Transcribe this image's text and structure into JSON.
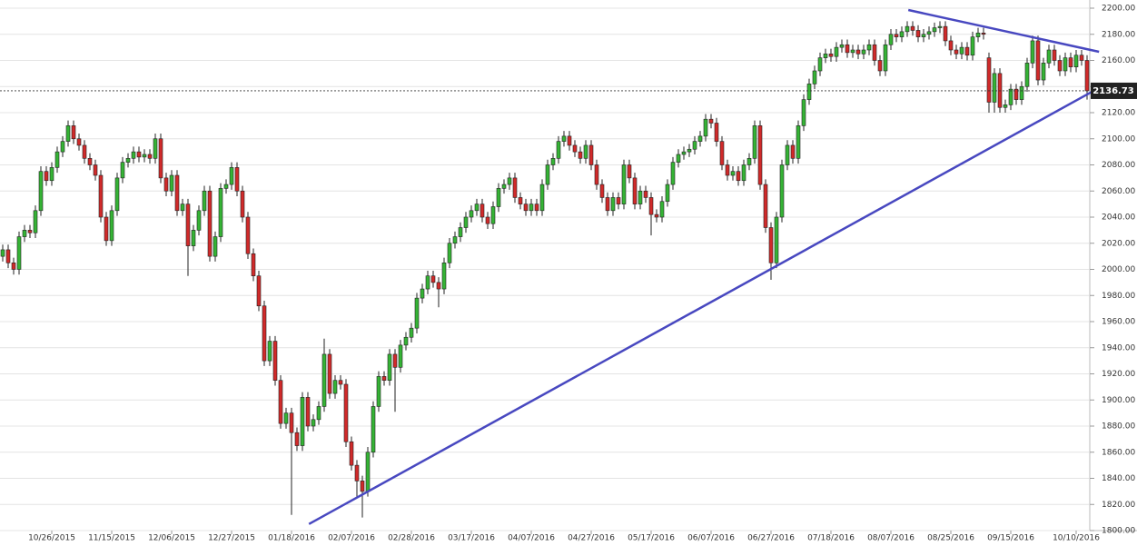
{
  "chart_data": {
    "type": "candlestick",
    "categories": [
      null,
      null,
      null,
      null,
      null,
      null,
      null,
      null,
      null,
      "10/26/2015",
      null,
      null,
      null,
      null,
      null,
      null,
      null,
      null,
      null,
      null,
      "11/15/2015",
      null,
      null,
      null,
      null,
      null,
      null,
      null,
      null,
      null,
      null,
      "12/06/2015",
      null,
      null,
      null,
      null,
      null,
      null,
      null,
      null,
      null,
      null,
      "12/27/2015",
      null,
      null,
      null,
      null,
      null,
      null,
      null,
      null,
      null,
      null,
      "01/18/2016",
      null,
      null,
      null,
      null,
      null,
      null,
      null,
      null,
      null,
      null,
      "02/07/2016",
      null,
      null,
      null,
      null,
      null,
      null,
      null,
      null,
      null,
      null,
      "02/28/2016",
      null,
      null,
      null,
      null,
      null,
      null,
      null,
      null,
      null,
      null,
      "03/17/2016",
      null,
      null,
      null,
      null,
      null,
      null,
      null,
      null,
      null,
      null,
      "04/07/2016",
      null,
      null,
      null,
      null,
      null,
      null,
      null,
      null,
      null,
      null,
      "04/27/2016",
      null,
      null,
      null,
      null,
      null,
      null,
      null,
      null,
      null,
      null,
      "05/17/2016",
      null,
      null,
      null,
      null,
      null,
      null,
      null,
      null,
      null,
      null,
      "06/07/2016",
      null,
      null,
      null,
      null,
      null,
      null,
      null,
      null,
      null,
      null,
      "06/27/2016",
      null,
      null,
      null,
      null,
      null,
      null,
      null,
      null,
      null,
      null,
      "07/18/2016",
      null,
      null,
      null,
      null,
      null,
      null,
      null,
      null,
      null,
      null,
      "08/07/2016",
      null,
      null,
      null,
      null,
      null,
      null,
      null,
      null,
      null,
      null,
      "08/25/2016",
      null,
      null,
      null,
      null,
      null,
      null,
      null,
      null,
      null,
      null,
      "09/15/2016",
      null,
      null,
      null,
      null,
      null,
      null,
      null,
      null,
      null,
      null,
      null,
      "10/10/2016",
      null,
      null
    ],
    "ohlc": {
      "open": [
        2010,
        2015,
        2005,
        2000,
        2025,
        2030,
        2028,
        2045,
        2075,
        2068,
        2078,
        2090,
        2098,
        2110,
        2100,
        2095,
        2085,
        2080,
        2072,
        2040,
        2022,
        2045,
        2070,
        2082,
        2085,
        2090,
        2086,
        2088,
        2085,
        2100,
        2070,
        2060,
        2072,
        2045,
        2050,
        2018,
        2030,
        2045,
        2060,
        2010,
        2025,
        2062,
        2065,
        2078,
        2060,
        2040,
        2012,
        1995,
        1972,
        1930,
        1945,
        1915,
        1882,
        1890,
        1875,
        1865,
        1902,
        1880,
        1885,
        1895,
        1935,
        1905,
        1915,
        1912,
        1868,
        1850,
        1838,
        1830,
        1860,
        1895,
        1918,
        1915,
        1935,
        1925,
        1942,
        1948,
        1955,
        1978,
        1985,
        1995,
        1990,
        1985,
        2005,
        2020,
        2025,
        2032,
        2040,
        2045,
        2050,
        2040,
        2035,
        2048,
        2062,
        2065,
        2070,
        2055,
        2050,
        2045,
        2050,
        2045,
        2065,
        2080,
        2085,
        2098,
        2102,
        2095,
        2090,
        2085,
        2095,
        2080,
        2065,
        2055,
        2045,
        2055,
        2050,
        2080,
        2070,
        2050,
        2060,
        2055,
        2042,
        2040,
        2052,
        2065,
        2082,
        2088,
        2090,
        2092,
        2098,
        2102,
        2115,
        2112,
        2098,
        2080,
        2072,
        2075,
        2068,
        2080,
        2085,
        2110,
        2065,
        2032,
        2005,
        2040,
        2080,
        2095,
        2085,
        2110,
        2130,
        2142,
        2152,
        2162,
        2165,
        2163,
        2170,
        2172,
        2166,
        2168,
        2165,
        2168,
        2172,
        2160,
        2152,
        2172,
        2180,
        2178,
        2182,
        2186,
        2183,
        2178,
        2180,
        2182,
        2185,
        2186,
        2175,
        2168,
        2165,
        2170,
        2164,
        2178,
        2181,
        2162,
        2128,
        2150,
        2124,
        2126,
        2138,
        2130,
        2140,
        2158,
        2175,
        2145,
        2158,
        2168,
        2160,
        2152,
        2162,
        2155,
        2164,
        2160
      ],
      "high": [
        2019,
        2019,
        2009,
        2029,
        2034,
        2034,
        2049,
        2079,
        2079,
        2082,
        2094,
        2102,
        2114,
        2114,
        2104,
        2099,
        2089,
        2084,
        2076,
        2044,
        2049,
        2074,
        2086,
        2089,
        2094,
        2094,
        2092,
        2092,
        2104,
        2104,
        2074,
        2076,
        2076,
        2054,
        2054,
        2034,
        2049,
        2064,
        2064,
        2029,
        2066,
        2069,
        2082,
        2082,
        2064,
        2044,
        2016,
        1999,
        1976,
        1949,
        1949,
        1919,
        1894,
        1894,
        1879,
        1906,
        1906,
        1889,
        1899,
        1947,
        1939,
        1919,
        1919,
        1916,
        1872,
        1854,
        1842,
        1864,
        1899,
        1922,
        1922,
        1939,
        1939,
        1946,
        1952,
        1959,
        1982,
        1989,
        1999,
        1999,
        1994,
        2009,
        2024,
        2029,
        2036,
        2044,
        2049,
        2054,
        2054,
        2044,
        2052,
        2066,
        2069,
        2074,
        2074,
        2059,
        2054,
        2054,
        2054,
        2069,
        2084,
        2089,
        2102,
        2106,
        2106,
        2099,
        2094,
        2099,
        2099,
        2084,
        2069,
        2059,
        2059,
        2059,
        2084,
        2084,
        2074,
        2064,
        2064,
        2059,
        2046,
        2056,
        2069,
        2086,
        2092,
        2094,
        2096,
        2102,
        2106,
        2119,
        2119,
        2116,
        2102,
        2084,
        2079,
        2079,
        2084,
        2089,
        2114,
        2114,
        2069,
        2036,
        2044,
        2084,
        2099,
        2099,
        2114,
        2134,
        2146,
        2156,
        2166,
        2169,
        2169,
        2174,
        2176,
        2176,
        2172,
        2172,
        2172,
        2176,
        2176,
        2164,
        2176,
        2184,
        2184,
        2186,
        2190,
        2190,
        2187,
        2184,
        2186,
        2189,
        2190,
        2190,
        2179,
        2172,
        2174,
        2174,
        2182,
        2185,
        2185,
        2166,
        2154,
        2154,
        2130,
        2142,
        2142,
        2144,
        2162,
        2179,
        2179,
        2162,
        2172,
        2172,
        2164,
        2166,
        2166,
        2168,
        2168,
        2164
      ],
      "low": [
        2006,
        2001,
        1996,
        1996,
        2021,
        2024,
        2024,
        2041,
        2064,
        2064,
        2074,
        2086,
        2094,
        2096,
        2091,
        2081,
        2076,
        2068,
        2036,
        2018,
        2018,
        2041,
        2066,
        2078,
        2081,
        2082,
        2082,
        2081,
        2081,
        2066,
        2056,
        2056,
        2041,
        2041,
        1995,
        2014,
        2026,
        2041,
        2006,
        2006,
        2021,
        2058,
        2061,
        2056,
        2036,
        2008,
        1991,
        1968,
        1926,
        1926,
        1911,
        1878,
        1878,
        1812,
        1861,
        1861,
        1876,
        1876,
        1881,
        1891,
        1901,
        1901,
        1908,
        1864,
        1846,
        1826,
        1810,
        1826,
        1856,
        1891,
        1911,
        1911,
        1891,
        1921,
        1938,
        1944,
        1951,
        1974,
        1981,
        1986,
        1971,
        1981,
        2001,
        2016,
        2021,
        2028,
        2036,
        2041,
        2036,
        2031,
        2031,
        2044,
        2058,
        2061,
        2051,
        2046,
        2041,
        2041,
        2041,
        2041,
        2061,
        2076,
        2081,
        2094,
        2091,
        2086,
        2081,
        2081,
        2076,
        2061,
        2051,
        2041,
        2041,
        2046,
        2046,
        2066,
        2046,
        2046,
        2051,
        2026,
        2036,
        2036,
        2048,
        2061,
        2078,
        2084,
        2086,
        2088,
        2094,
        2098,
        2108,
        2094,
        2076,
        2068,
        2068,
        2064,
        2064,
        2076,
        2081,
        2061,
        2028,
        1992,
        2001,
        2036,
        2076,
        2081,
        2081,
        2106,
        2126,
        2138,
        2148,
        2158,
        2159,
        2159,
        2166,
        2162,
        2162,
        2161,
        2161,
        2164,
        2156,
        2148,
        2148,
        2168,
        2174,
        2174,
        2178,
        2179,
        2174,
        2174,
        2176,
        2178,
        2181,
        2171,
        2164,
        2161,
        2161,
        2160,
        2160,
        2174,
        2176,
        2120,
        2120,
        2120,
        2120,
        2122,
        2126,
        2126,
        2136,
        2154,
        2141,
        2141,
        2154,
        2156,
        2148,
        2148,
        2151,
        2151,
        2156,
        2130
      ],
      "close": [
        2015,
        2005,
        2000,
        2025,
        2030,
        2028,
        2045,
        2075,
        2068,
        2078,
        2090,
        2098,
        2110,
        2100,
        2095,
        2085,
        2080,
        2072,
        2040,
        2022,
        2045,
        2070,
        2082,
        2085,
        2090,
        2086,
        2088,
        2085,
        2100,
        2070,
        2060,
        2072,
        2045,
        2050,
        2018,
        2030,
        2045,
        2060,
        2010,
        2025,
        2062,
        2065,
        2078,
        2060,
        2040,
        2012,
        1995,
        1972,
        1930,
        1945,
        1915,
        1882,
        1890,
        1875,
        1865,
        1902,
        1880,
        1885,
        1895,
        1935,
        1905,
        1915,
        1912,
        1868,
        1850,
        1838,
        1830,
        1860,
        1895,
        1918,
        1915,
        1935,
        1925,
        1942,
        1948,
        1955,
        1978,
        1985,
        1995,
        1990,
        1985,
        2005,
        2020,
        2025,
        2032,
        2040,
        2045,
        2050,
        2040,
        2035,
        2048,
        2062,
        2065,
        2070,
        2055,
        2050,
        2045,
        2050,
        2045,
        2065,
        2080,
        2085,
        2098,
        2102,
        2095,
        2090,
        2085,
        2095,
        2080,
        2065,
        2055,
        2045,
        2055,
        2050,
        2080,
        2070,
        2050,
        2060,
        2055,
        2042,
        2040,
        2052,
        2065,
        2082,
        2088,
        2090,
        2092,
        2098,
        2102,
        2115,
        2112,
        2098,
        2080,
        2072,
        2075,
        2068,
        2080,
        2085,
        2110,
        2065,
        2032,
        2005,
        2040,
        2080,
        2095,
        2085,
        2110,
        2130,
        2142,
        2152,
        2162,
        2165,
        2163,
        2170,
        2172,
        2166,
        2168,
        2165,
        2168,
        2172,
        2160,
        2152,
        2172,
        2180,
        2178,
        2182,
        2186,
        2183,
        2178,
        2180,
        2182,
        2185,
        2186,
        2175,
        2168,
        2165,
        2170,
        2164,
        2178,
        2181,
        2180,
        2128,
        2150,
        2124,
        2126,
        2138,
        2130,
        2140,
        2158,
        2175,
        2145,
        2158,
        2168,
        2160,
        2152,
        2162,
        2155,
        2164,
        2160,
        2136.73
      ]
    },
    "up_color": "#35b335",
    "down_color": "#d02a2a",
    "ylim": [
      1800,
      2200
    ],
    "yticks": [
      {
        "value": 1800,
        "label": "1800.00"
      },
      {
        "value": 1820,
        "label": "1820.00"
      },
      {
        "value": 1840,
        "label": "1840.00"
      },
      {
        "value": 1860,
        "label": "1860.00"
      },
      {
        "value": 1880,
        "label": "1880.00"
      },
      {
        "value": 1900,
        "label": "1900.00"
      },
      {
        "value": 1920,
        "label": "1920.00"
      },
      {
        "value": 1940,
        "label": "1940.00"
      },
      {
        "value": 1960,
        "label": "1960.00"
      },
      {
        "value": 1980,
        "label": "1980.00"
      },
      {
        "value": 2000,
        "label": "2000.00"
      },
      {
        "value": 2020,
        "label": "2020.00"
      },
      {
        "value": 2040,
        "label": "2040.00"
      },
      {
        "value": 2060,
        "label": "2060.00"
      },
      {
        "value": 2080,
        "label": "2080.00"
      },
      {
        "value": 2100,
        "label": "2100.00"
      },
      {
        "value": 2120,
        "label": "2120.00"
      },
      {
        "value": 2140,
        "label": "2140.00"
      },
      {
        "value": 2160,
        "label": "2160.00"
      },
      {
        "value": 2180,
        "label": "2180.00"
      },
      {
        "value": 2200,
        "label": "2200.00"
      }
    ],
    "grid": true,
    "last_price": 2136.73,
    "trendlines": [
      {
        "color": "#4848c0",
        "x": [
          56.2,
          201.2
        ],
        "y": [
          1805,
          2139
        ]
      },
      {
        "color": "#4848c0",
        "x": [
          166.2,
          201.2
        ],
        "y": [
          2198.6,
          2166.6
        ]
      }
    ]
  }
}
